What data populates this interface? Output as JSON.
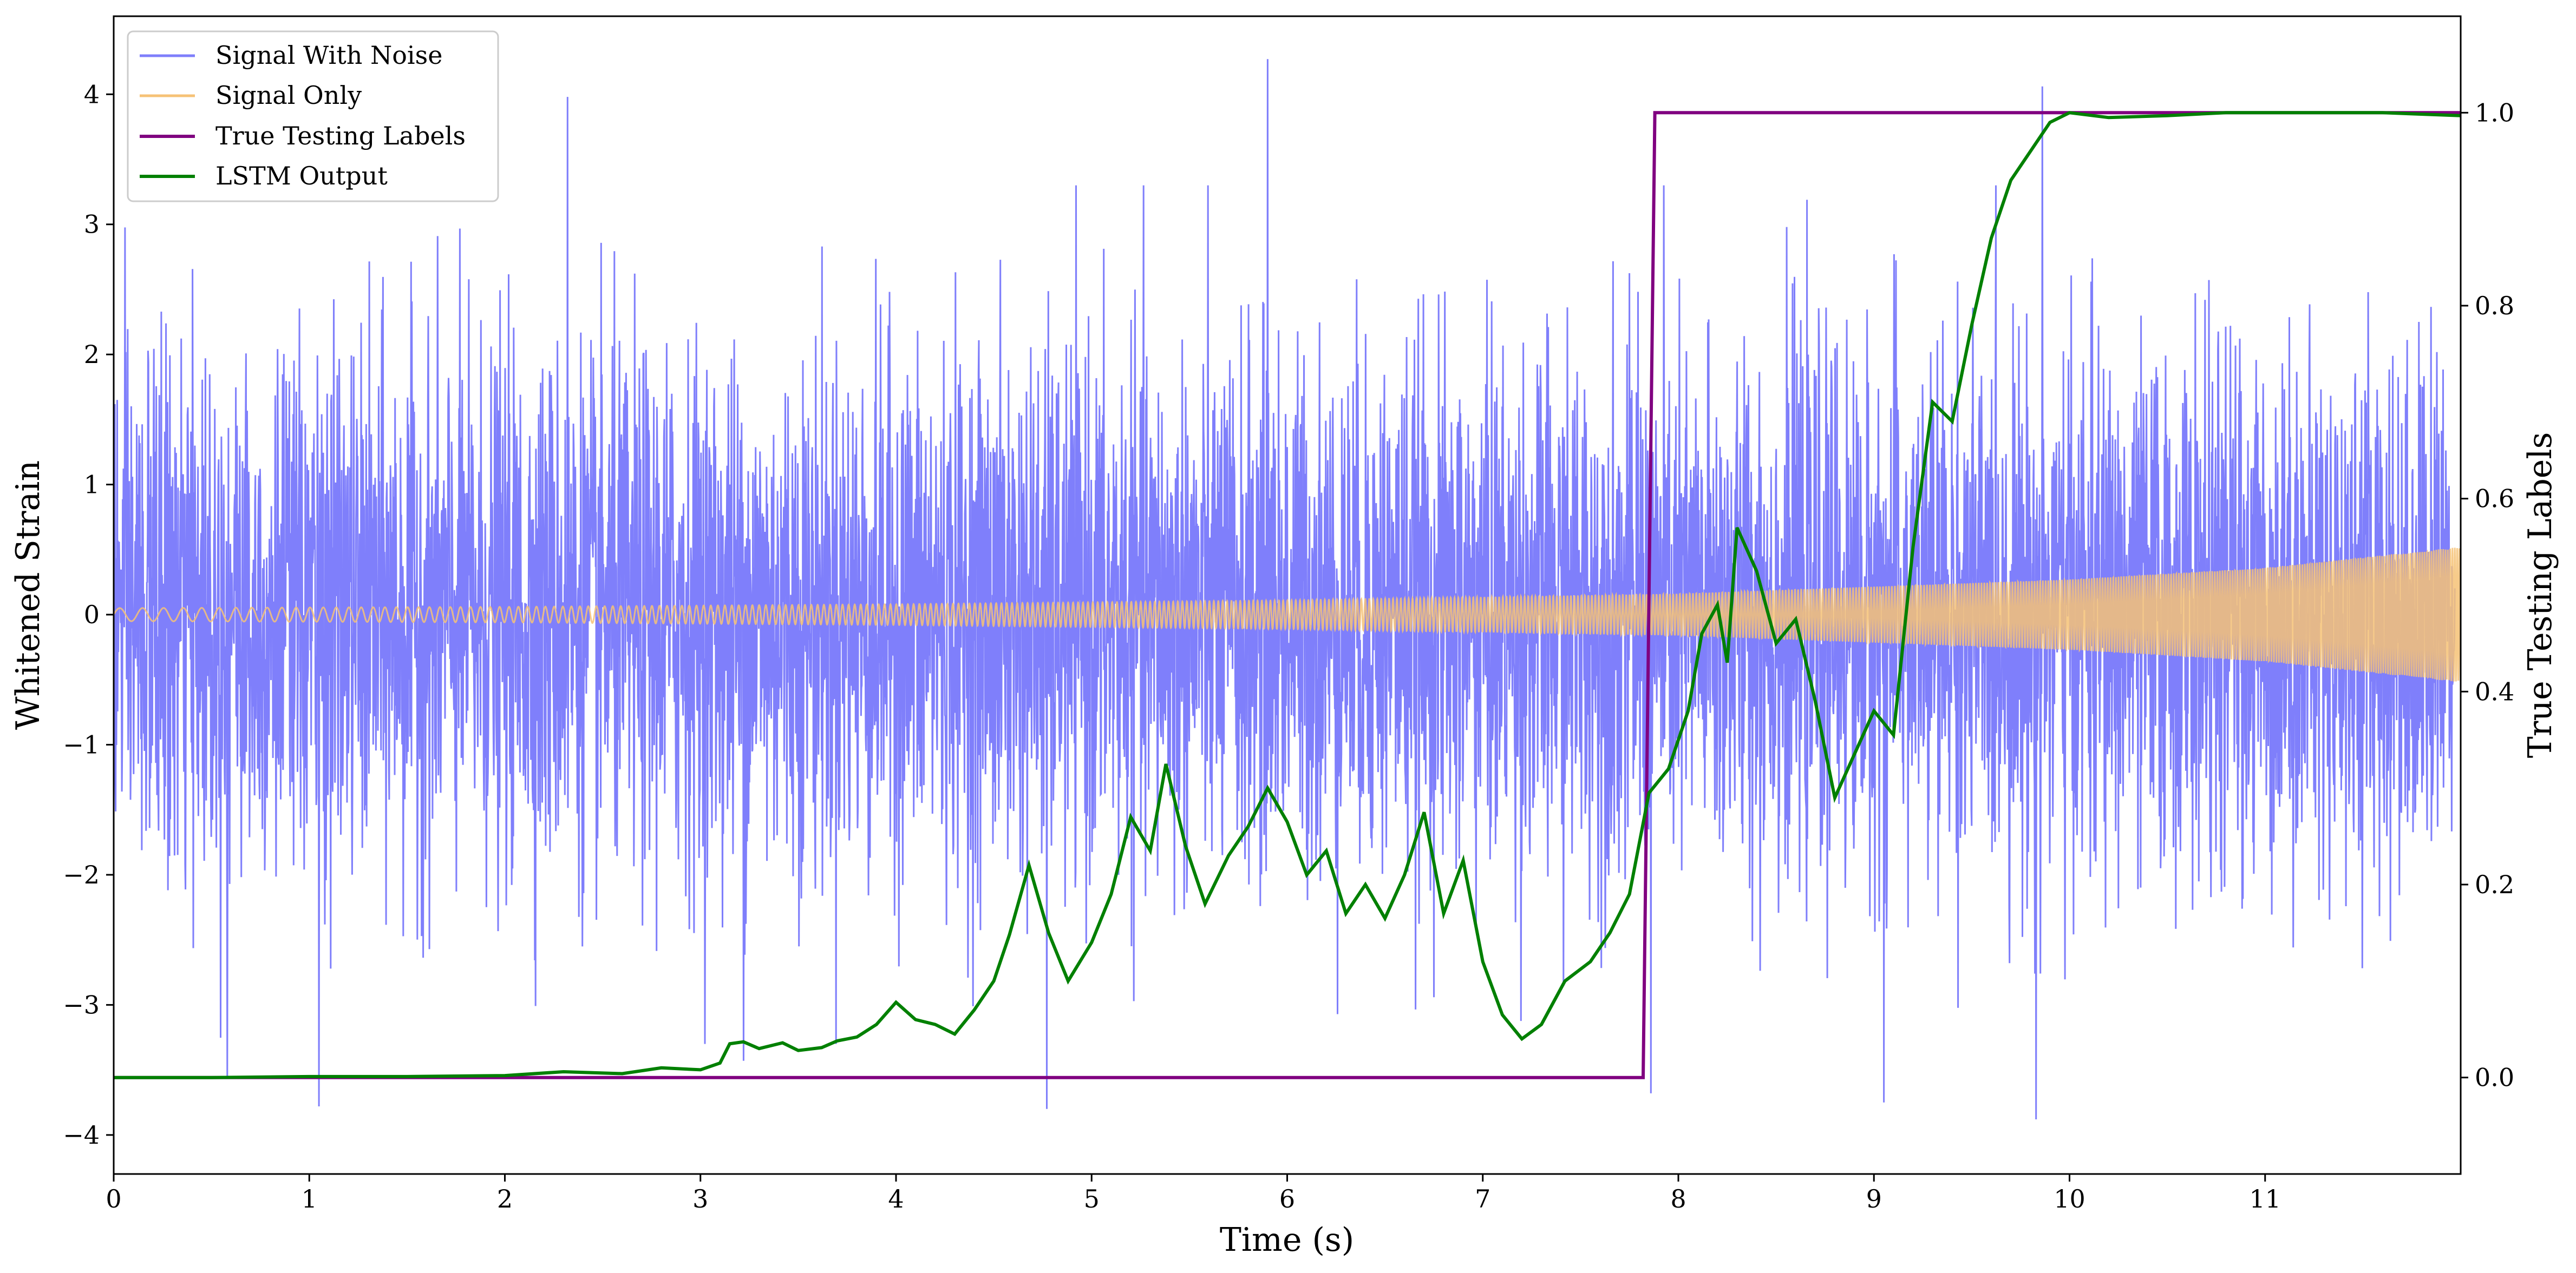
{
  "chart_data": {
    "type": "line",
    "xlabel": "Time (s)",
    "ylabel": "Whitened Strain",
    "ylabel_right": "True Testing Labels",
    "xlim": [
      0,
      12
    ],
    "ylim": [
      -4.3,
      4.6
    ],
    "ylim_right": [
      -0.1,
      1.1
    ],
    "x_ticks": [
      0,
      1,
      2,
      3,
      4,
      5,
      6,
      7,
      8,
      9,
      10,
      11
    ],
    "y_ticks": [
      4,
      3,
      2,
      1,
      0,
      -1,
      -2,
      -3,
      -4
    ],
    "y_tick_labels": [
      "4",
      "3",
      "2",
      "1",
      "0",
      "−1",
      "−2",
      "−3",
      "−4"
    ],
    "y_right_ticks": [
      1.0,
      0.8,
      0.6,
      0.4,
      0.2,
      0.0
    ],
    "y_right_tick_labels": [
      "1.0",
      "0.8",
      "0.6",
      "0.4",
      "0.2",
      "0.0"
    ],
    "grid": false,
    "legend_position": "top-left",
    "series": [
      {
        "name": "Signal With Noise",
        "color": "#7f7ffb",
        "axis": "left",
        "description_samples_std": 1.0,
        "extremes": [
          [
            0.58,
            -3.55
          ],
          [
            1.05,
            -3.78
          ],
          [
            2.32,
            3.98
          ],
          [
            3.22,
            -3.43
          ],
          [
            4.77,
            -3.8
          ],
          [
            5.9,
            4.27
          ],
          [
            7.86,
            -3.68
          ],
          [
            9.05,
            -3.75
          ],
          [
            9.83,
            -3.88
          ],
          [
            9.86,
            4.06
          ]
        ]
      },
      {
        "name": "Signal Only",
        "color": "#f6c276",
        "axis": "left",
        "envelope": [
          [
            0,
            0.05
          ],
          [
            2,
            0.06
          ],
          [
            4,
            0.08
          ],
          [
            6,
            0.11
          ],
          [
            8,
            0.16
          ],
          [
            10,
            0.27
          ],
          [
            11,
            0.36
          ],
          [
            12,
            0.52
          ]
        ]
      },
      {
        "name": "True Testing Labels",
        "color": "#800080",
        "axis": "right",
        "x": [
          0,
          7.82,
          7.88,
          12
        ],
        "y": [
          0,
          0,
          1,
          1
        ]
      },
      {
        "name": "LSTM Output",
        "color": "#008000",
        "axis": "right",
        "x": [
          0,
          0.5,
          1.0,
          1.5,
          2.0,
          2.3,
          2.6,
          2.8,
          3.0,
          3.1,
          3.15,
          3.22,
          3.3,
          3.42,
          3.5,
          3.62,
          3.7,
          3.8,
          3.9,
          4.0,
          4.1,
          4.2,
          4.3,
          4.4,
          4.5,
          4.58,
          4.68,
          4.78,
          4.88,
          5.0,
          5.1,
          5.2,
          5.3,
          5.38,
          5.48,
          5.58,
          5.7,
          5.8,
          5.9,
          6.0,
          6.1,
          6.2,
          6.3,
          6.4,
          6.5,
          6.6,
          6.7,
          6.8,
          6.9,
          7.0,
          7.1,
          7.2,
          7.3,
          7.42,
          7.55,
          7.65,
          7.75,
          7.85,
          7.95,
          8.0,
          8.05,
          8.12,
          8.2,
          8.25,
          8.3,
          8.4,
          8.5,
          8.6,
          8.7,
          8.8,
          8.9,
          9.0,
          9.1,
          9.2,
          9.3,
          9.4,
          9.5,
          9.6,
          9.7,
          9.8,
          9.9,
          10.0,
          10.2,
          10.5,
          10.8,
          11.2,
          11.6,
          12.0
        ],
        "y": [
          0,
          0,
          0.001,
          0.001,
          0.002,
          0.006,
          0.004,
          0.01,
          0.008,
          0.015,
          0.035,
          0.037,
          0.03,
          0.036,
          0.028,
          0.031,
          0.038,
          0.042,
          0.055,
          0.078,
          0.06,
          0.055,
          0.045,
          0.07,
          0.1,
          0.148,
          0.22,
          0.15,
          0.1,
          0.14,
          0.19,
          0.27,
          0.235,
          0.325,
          0.24,
          0.18,
          0.23,
          0.26,
          0.3,
          0.265,
          0.21,
          0.235,
          0.17,
          0.2,
          0.165,
          0.21,
          0.275,
          0.17,
          0.225,
          0.12,
          0.065,
          0.04,
          0.055,
          0.1,
          0.12,
          0.15,
          0.19,
          0.295,
          0.32,
          0.35,
          0.38,
          0.46,
          0.49,
          0.43,
          0.57,
          0.525,
          0.45,
          0.475,
          0.39,
          0.29,
          0.335,
          0.38,
          0.355,
          0.55,
          0.7,
          0.68,
          0.78,
          0.87,
          0.93,
          0.96,
          0.99,
          1.0,
          0.995,
          0.997,
          1.0,
          1.0,
          1.0,
          0.997
        ]
      }
    ]
  }
}
